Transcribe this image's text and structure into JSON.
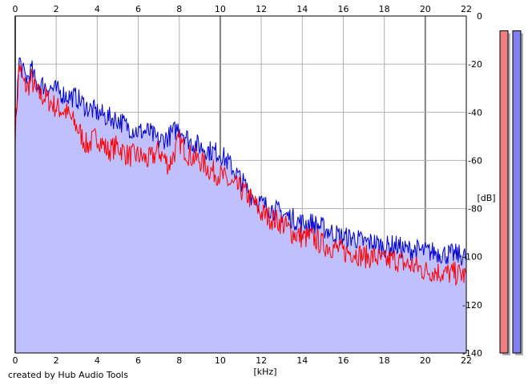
{
  "credit": "created by Hub Audio Tools",
  "colors": {
    "fill": "#c0c0ff",
    "left_channel": "#ff0000",
    "right_channel": "#0000cc",
    "grid": "#b0b0b0",
    "major_grid": "#808080",
    "meter_left": "#f08080",
    "meter_right": "#8080f0"
  },
  "chart_data": {
    "type": "line",
    "title": "",
    "xlabel": "[kHz]",
    "ylabel": "[dB]",
    "xlim": [
      0,
      22
    ],
    "ylim": [
      -140,
      0
    ],
    "x_ticks": [
      "0",
      "2",
      "4",
      "6",
      "8",
      "10",
      "12",
      "14",
      "16",
      "18",
      "20",
      "22"
    ],
    "y_ticks": [
      "0",
      "-20",
      "-40",
      "-60",
      "-80",
      "-100",
      "-120",
      "-140"
    ],
    "grid": true,
    "legend": "none",
    "x": [
      0,
      0.2,
      0.4,
      0.6,
      0.8,
      1,
      1.5,
      2,
      2.5,
      3,
      3.5,
      4,
      4.5,
      5,
      5.5,
      6,
      6.5,
      7,
      7.5,
      8,
      8.5,
      9,
      9.5,
      10,
      10.5,
      11,
      11.5,
      12,
      12.5,
      13,
      13.5,
      14,
      14.5,
      15,
      15.5,
      16,
      16.5,
      17,
      17.5,
      18,
      18.5,
      19,
      19.5,
      20,
      20.5,
      21,
      21.5,
      22
    ],
    "series": [
      {
        "values": [
          -48,
          -20,
          -28,
          -30,
          -26,
          -32,
          -34,
          -38,
          -40,
          -46,
          -54,
          -50,
          -56,
          -54,
          -58,
          -58,
          -60,
          -56,
          -62,
          -52,
          -58,
          -60,
          -64,
          -66,
          -70,
          -72,
          -76,
          -82,
          -84,
          -86,
          -90,
          -92,
          -92,
          -95,
          -96,
          -98,
          -98,
          -100,
          -100,
          -102,
          -101,
          -103,
          -104,
          -106,
          -106,
          -107,
          -107,
          -108
        ]
      },
      {
        "values": [
          -45,
          -18,
          -24,
          -26,
          -22,
          -28,
          -29,
          -31,
          -33,
          -34,
          -38,
          -40,
          -42,
          -43,
          -46,
          -48,
          -48,
          -52,
          -50,
          -46,
          -52,
          -54,
          -56,
          -57,
          -62,
          -68,
          -74,
          -78,
          -80,
          -82,
          -84,
          -86,
          -86,
          -88,
          -90,
          -92,
          -92,
          -94,
          -94,
          -96,
          -95,
          -97,
          -97,
          -98,
          -98,
          -99,
          -99,
          -100
        ]
      }
    ]
  },
  "meters": {
    "left_level": 0.97,
    "right_level": 0.97
  }
}
